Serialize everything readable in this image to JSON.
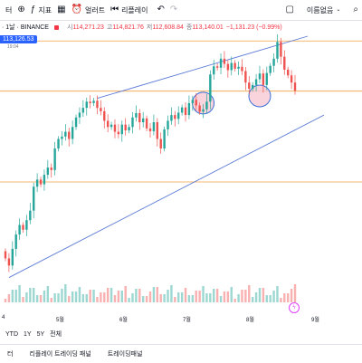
{
  "toolbar": {
    "left_label": "터",
    "indicators_label": "지표",
    "alerts_label": "얼러트",
    "replay_label": "리플레이",
    "layout_label": "이름없음"
  },
  "symbol": {
    "text": "· 1날 · BINANCE",
    "open_label": "시",
    "open": "114,271.23",
    "high_label": "고",
    "high": "114,821.76",
    "low_label": "저",
    "low": "112,608.84",
    "close_label": "종",
    "close": "113,140.01",
    "change": "−1,131.23 (−0.99%)"
  },
  "price_badge": {
    "value": "113,126.53",
    "sub": "19:04"
  },
  "x_axis": {
    "labels": [
      "4",
      "5월",
      "6월",
      "7월",
      "8월",
      "9월"
    ]
  },
  "timeframes": [
    "YTD",
    "1Y",
    "5Y",
    "전체"
  ],
  "footer": {
    "items": [
      "터",
      "리플레이 트레이딩 패널",
      "트레이딩패널"
    ]
  },
  "colors": {
    "up": "#26a69a",
    "down": "#ef5350",
    "trendline": "#5b7bd6",
    "hline": "#f0a040",
    "circle_fill": "#f8c9d4",
    "circle_stroke": "#3a6fd8"
  },
  "chart_data": {
    "type": "candlestick",
    "exchange": "BINANCE",
    "interval": "1날",
    "x_start": "4월",
    "x_end": "9월",
    "last_close": 113140.01,
    "price_min": 76000,
    "price_max": 124500,
    "closes": [
      78000,
      76500,
      80000,
      83000,
      85000,
      84000,
      86000,
      88000,
      93000,
      94500,
      93500,
      95500,
      97000,
      96500,
      101000,
      103000,
      103500,
      104500,
      103000,
      105500,
      107500,
      108500,
      109500,
      110800,
      110500,
      111000,
      109500,
      108800,
      106800,
      105500,
      106000,
      104500,
      104000,
      106000,
      104800,
      105500,
      107500,
      108400,
      106500,
      107300,
      105200,
      104600,
      106500,
      103000,
      101000,
      105000,
      106800,
      108000,
      107200,
      108500,
      109600,
      108000,
      110500,
      111200,
      110000,
      108700,
      109200,
      110800,
      116500,
      118200,
      117900,
      119800,
      118700,
      117400,
      118900,
      117700,
      118100,
      117200,
      114800,
      113500,
      114300,
      115500,
      116700,
      114300,
      116800,
      118300,
      119800,
      123300,
      120200,
      117500,
      116300,
      114800,
      113100
    ]
  }
}
